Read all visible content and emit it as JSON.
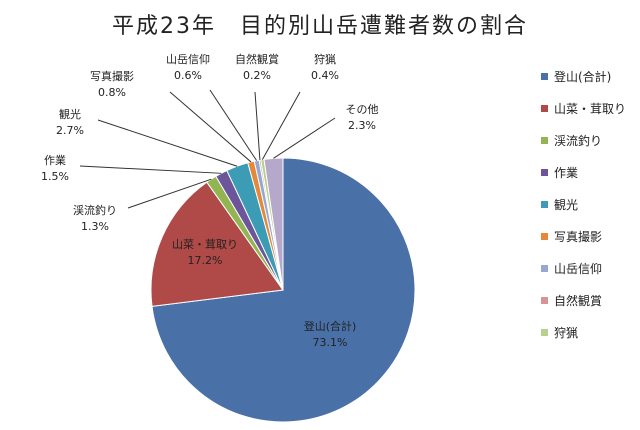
{
  "chart_data": {
    "type": "pie",
    "title": "平成23年　目的別山岳遭難者数の割合",
    "slices": [
      {
        "name": "登山(合計)",
        "value": 73.1,
        "label": "73.1%",
        "legend": "登山(合計)",
        "color": "#4a70a8"
      },
      {
        "name": "山菜・茸取り",
        "value": 17.2,
        "label": "17.2%",
        "legend": "山菜・茸取り",
        "color": "#b04a48"
      },
      {
        "name": "渓流釣り",
        "value": 1.3,
        "label": "1.3%",
        "legend": "渓流釣り",
        "color": "#92b552"
      },
      {
        "name": "作業",
        "value": 1.5,
        "label": "1.5%",
        "legend": "作業",
        "color": "#6d559a"
      },
      {
        "name": "観光",
        "value": 2.7,
        "label": "2.7%",
        "legend": "観光",
        "color": "#3c9bb5"
      },
      {
        "name": "写真撮影",
        "value": 0.8,
        "label": "0.8%",
        "legend": "写真撮影",
        "color": "#e5883c"
      },
      {
        "name": "山岳信仰",
        "value": 0.6,
        "label": "0.6%",
        "legend": "山岳信仰",
        "color": "#95a8d2"
      },
      {
        "name": "自然観賞",
        "value": 0.2,
        "label": "0.2%",
        "legend": "自然観賞",
        "color": "#d69592"
      },
      {
        "name": "狩猟",
        "value": 0.4,
        "label": "0.4%",
        "legend": "狩猟",
        "color": "#b8cf8e"
      },
      {
        "name": "その他",
        "value": 2.3,
        "label": "2.3%",
        "legend": "",
        "color": "#b6a8cb"
      }
    ],
    "legend_position": "right"
  }
}
